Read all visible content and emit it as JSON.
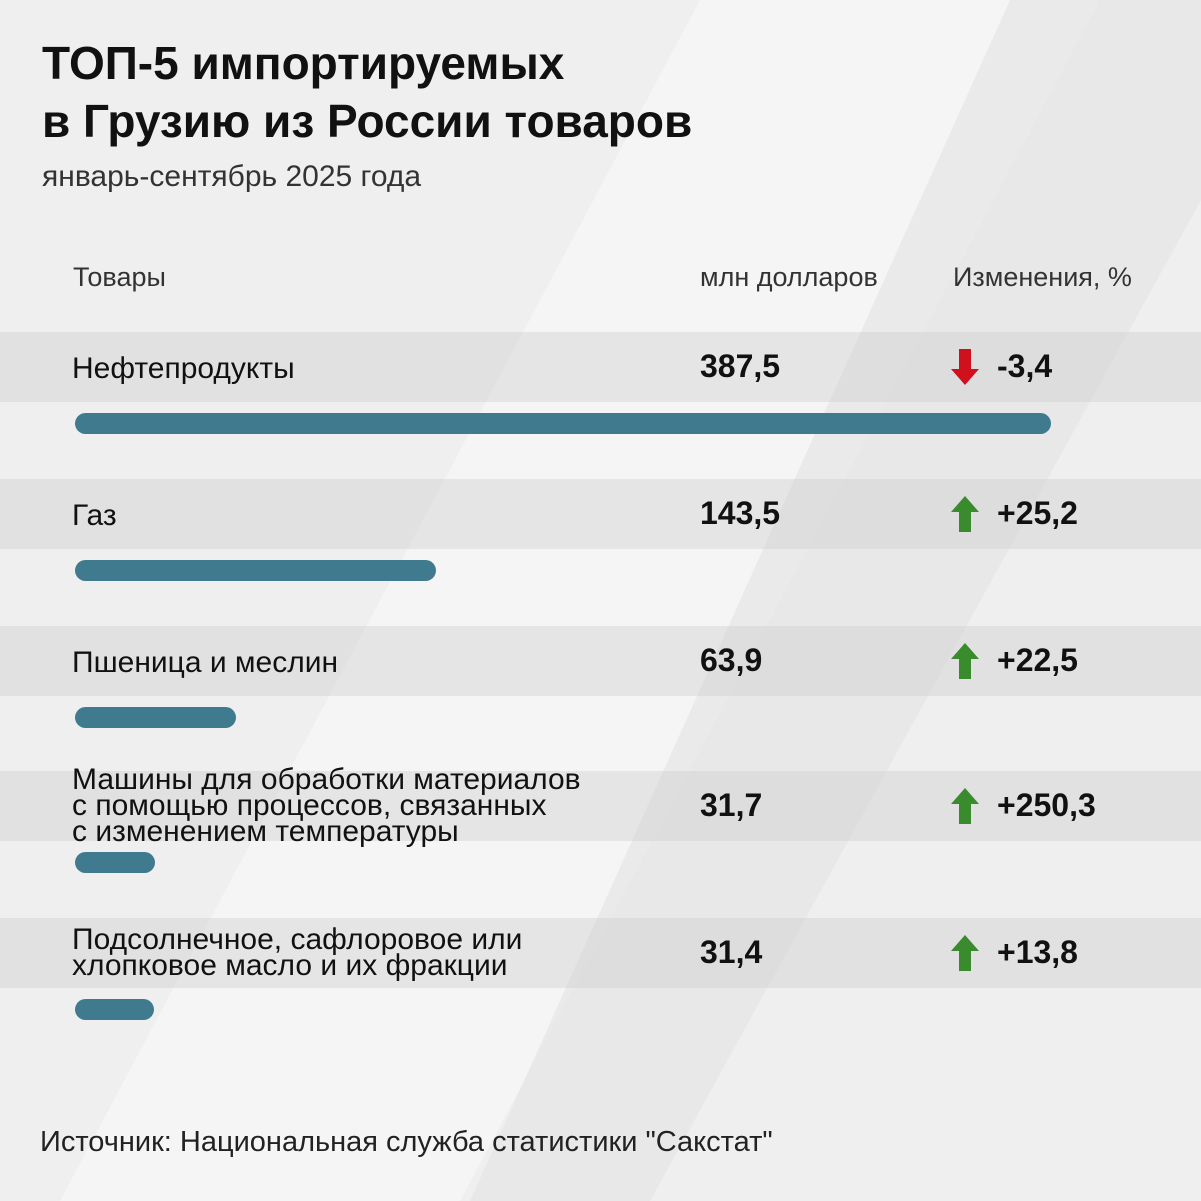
{
  "chart_data": {
    "type": "bar",
    "title": "ТОП-5 импортируемых\nв Грузию из России товаров",
    "subtitle": "январь-сентябрь 2025 года",
    "columns": [
      "Товары",
      "млн долларов",
      "Изменения, %"
    ],
    "categories": [
      "Нефтепродукты",
      "Газ",
      "Пшеница и меслин",
      "Машины для обработки материалов\nс помощью процессов, связанных\nс изменением температуры",
      "Подсолнечное, сафлоровое или\nхлопковое масло и их фракции"
    ],
    "values": [
      387.5,
      143.5,
      63.9,
      31.7,
      31.4
    ],
    "value_labels": [
      "387,5",
      "143,5",
      "63,9",
      "31,7",
      "31,4"
    ],
    "color": "#3f7a8f",
    "changes": {
      "values": [
        -3.4,
        25.2,
        22.5,
        250.3,
        13.8
      ],
      "value_labels": [
        "-3,4",
        "+25,2",
        "+22,5",
        "+250,3",
        "+13,8"
      ],
      "up_color": "#3a8a2e",
      "down_color": "#d0101c"
    },
    "source": "Источник: Национальная служба статистики \"Сакстат\""
  }
}
